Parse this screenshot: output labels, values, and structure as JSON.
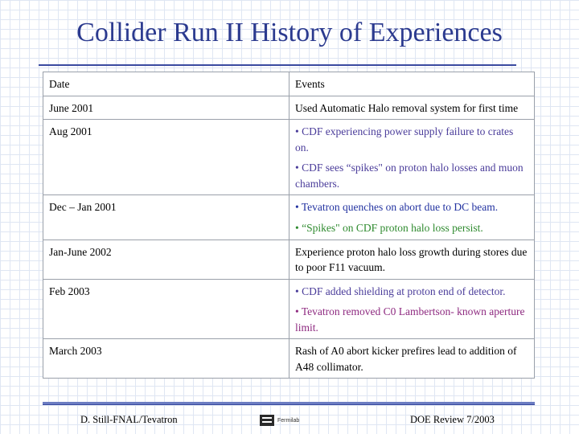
{
  "title": "Collider Run II History of Experiences",
  "table": {
    "headers": [
      "Date",
      "Events"
    ],
    "rows": [
      {
        "date": "June 2001",
        "events": [
          {
            "text": "Used Automatic Halo removal system for first time",
            "color": "black"
          }
        ]
      },
      {
        "date": "Aug 2001",
        "events": [
          {
            "text": "• CDF experiencing power supply failure to crates on.",
            "color": "cdf"
          },
          {
            "text": "• CDF sees “spikes\" on proton halo losses and muon chambers.",
            "color": "cdf"
          }
        ]
      },
      {
        "date": "Dec – Jan 2001",
        "events": [
          {
            "text": "• Tevatron quenches on abort due to DC beam.",
            "color": "blue"
          },
          {
            "text": "• “Spikes\" on CDF proton halo loss persist.",
            "color": "green"
          }
        ]
      },
      {
        "date": "Jan-June 2002",
        "events": [
          {
            "text": "Experience proton halo loss growth during stores due to poor F11 vacuum.",
            "color": "black"
          }
        ]
      },
      {
        "date": "Feb 2003",
        "events": [
          {
            "text": "• CDF added shielding at proton end of detector.",
            "color": "cdf"
          },
          {
            "text": "• Tevatron removed C0 Lambertson- known aperture limit.",
            "color": "tev"
          }
        ]
      },
      {
        "date": "March 2003",
        "events": [
          {
            "text": "Rash of A0 abort kicker prefires lead to addition of A48 collimator.",
            "color": "black"
          }
        ]
      }
    ]
  },
  "footer": {
    "left": "D. Still-FNAL/Tevatron",
    "logo": "Fermilab",
    "right": "DOE Review 7/2003"
  },
  "colors": {
    "title": "#2b3a8f",
    "cdf": "#4a3c9a",
    "tev": "#8e2a80",
    "green": "#2e8a2e",
    "blue": "#2232a0"
  }
}
